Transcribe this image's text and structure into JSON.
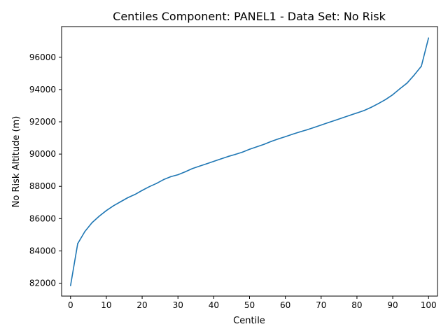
{
  "chart_data": {
    "type": "line",
    "title": "Centiles Component: PANEL1 - Data Set: No Risk",
    "xlabel": "Centile",
    "ylabel": "No Risk Altitude (m)",
    "xlim": [
      -2.5,
      102.5
    ],
    "ylim": [
      81200,
      97900
    ],
    "xticks": [
      0,
      10,
      20,
      30,
      40,
      50,
      60,
      70,
      80,
      90,
      100
    ],
    "yticks": [
      82000,
      84000,
      86000,
      88000,
      90000,
      92000,
      94000,
      96000
    ],
    "grid": false,
    "colors": {
      "line": "#1f77b4"
    },
    "series": [
      {
        "x": [
          0,
          2,
          4,
          6,
          8,
          10,
          12,
          14,
          16,
          18,
          20,
          22,
          24,
          26,
          28,
          30,
          32,
          34,
          36,
          38,
          40,
          42,
          44,
          46,
          48,
          50,
          52,
          54,
          56,
          58,
          60,
          62,
          64,
          66,
          68,
          70,
          72,
          74,
          76,
          78,
          80,
          82,
          84,
          86,
          88,
          90,
          92,
          94,
          96,
          98,
          100
        ],
        "values": [
          81850,
          84450,
          85200,
          85750,
          86150,
          86500,
          86800,
          87050,
          87300,
          87500,
          87750,
          87980,
          88180,
          88420,
          88600,
          88720,
          88900,
          89100,
          89250,
          89400,
          89550,
          89700,
          89850,
          89980,
          90120,
          90300,
          90450,
          90600,
          90780,
          90940,
          91080,
          91230,
          91370,
          91500,
          91650,
          91800,
          91950,
          92100,
          92250,
          92400,
          92550,
          92700,
          92900,
          93130,
          93380,
          93680,
          94050,
          94400,
          94900,
          95450,
          97200
        ]
      }
    ]
  }
}
